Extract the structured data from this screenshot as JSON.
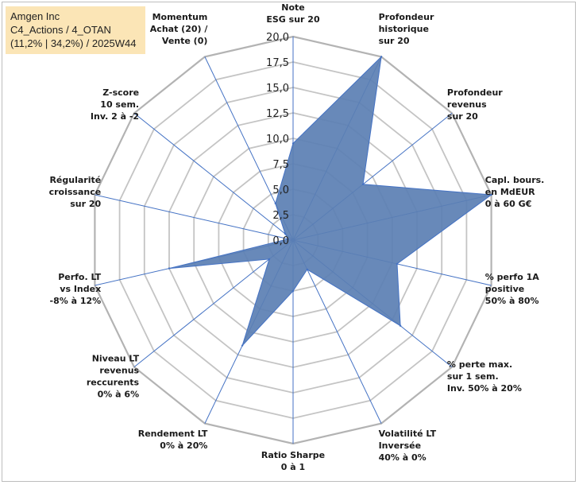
{
  "header": {
    "company": "Amgen Inc",
    "line2": "C4_Actions / 4_OTAN",
    "line3": "(11,2% | 34,2%) / 2025W44"
  },
  "chart_data": {
    "type": "radar",
    "title": "Amgen Inc",
    "rmin": 0,
    "rmax": 20,
    "ticks": [
      "0,0",
      "2,5",
      "5,0",
      "7,5",
      "10,0",
      "12,5",
      "15,0",
      "17,5",
      "20,0"
    ],
    "axes": [
      {
        "label": [
          "Note",
          "ESG sur 20"
        ],
        "value": 9.5
      },
      {
        "label": [
          "Profondeur",
          "historique",
          "sur 20"
        ],
        "value": 20
      },
      {
        "label": [
          "Profondeur",
          "revenus",
          "sur 20"
        ],
        "value": 8.8
      },
      {
        "label": [
          "Capl. bours.",
          "en MdEUR",
          "0 à 60 G€"
        ],
        "value": 20
      },
      {
        "label": [
          "% perfo 1A",
          "positive",
          "50% à 80%"
        ],
        "value": 10.5
      },
      {
        "label": [
          "% perte max.",
          "sur 1 sem.",
          "Inv. 50% à 20%"
        ],
        "value": 13.5
      },
      {
        "label": [
          "Volatilité LT",
          "Inversée",
          "40% à 0%"
        ],
        "value": 3.2
      },
      {
        "label": [
          "Ratio Sharpe",
          "0 à 1"
        ],
        "value": 5.0
      },
      {
        "label": [
          "Rendement LT",
          "0% à 20%"
        ],
        "value": 11.5
      },
      {
        "label": [
          "Niveau LT",
          "revenus",
          "reccurents",
          "0% à 6%"
        ],
        "value": 3.0
      },
      {
        "label": [
          "Perfo. LT",
          "vs Index",
          "-8% à 12%"
        ],
        "value": 12.5
      },
      {
        "label": [
          "Régularité",
          "croissance",
          "sur 20"
        ],
        "value": 0.5
      },
      {
        "label": [
          "Z-score",
          "10 sem.",
          "Inv. 2 à -2"
        ],
        "value": 1.0
      },
      {
        "label": [
          "Momentum",
          "Achat (20) /",
          "Vente (0)"
        ],
        "value": 4.0
      }
    ],
    "colors": {
      "fill": "#5b7fb3",
      "spoke": "#4472c4",
      "grid": "#c4c4c4",
      "grid_outer": "#b3b3b3"
    }
  }
}
